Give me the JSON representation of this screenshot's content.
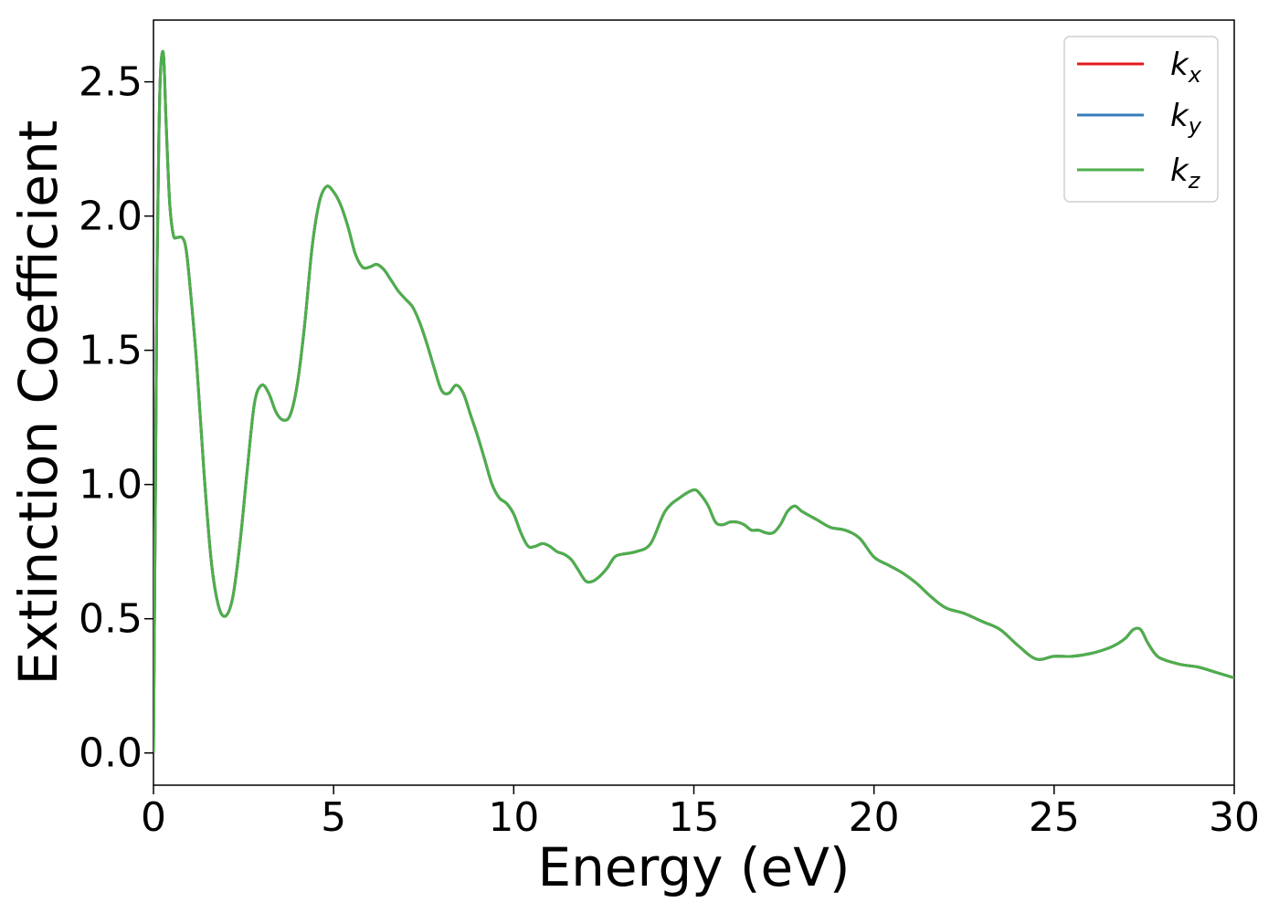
{
  "chart_data": {
    "type": "line",
    "title": "",
    "xlabel": "Energy (eV)",
    "ylabel": "Extinction Coefficient",
    "xlim": [
      0,
      30
    ],
    "ylim": [
      -0.12,
      2.73
    ],
    "xticks": [
      0,
      5,
      10,
      15,
      20,
      25,
      30
    ],
    "yticks": [
      0.0,
      0.5,
      1.0,
      1.5,
      2.0,
      2.5
    ],
    "xtick_labels": [
      "0",
      "5",
      "10",
      "15",
      "20",
      "25",
      "30"
    ],
    "ytick_labels": [
      "0.0",
      "0.5",
      "1.0",
      "1.5",
      "2.0",
      "2.5"
    ],
    "grid": false,
    "legend_position": "top-right",
    "x": [
      0,
      0.05,
      0.1,
      0.15,
      0.2,
      0.28,
      0.35,
      0.45,
      0.55,
      0.65,
      0.8,
      0.9,
      1.0,
      1.2,
      1.4,
      1.6,
      1.8,
      2.0,
      2.2,
      2.4,
      2.6,
      2.8,
      3.0,
      3.2,
      3.4,
      3.6,
      3.8,
      4.0,
      4.2,
      4.4,
      4.6,
      4.8,
      5.0,
      5.2,
      5.4,
      5.6,
      5.8,
      6.0,
      6.2,
      6.4,
      6.6,
      6.8,
      7.0,
      7.2,
      7.4,
      7.6,
      7.8,
      8.0,
      8.2,
      8.4,
      8.6,
      8.8,
      9.0,
      9.2,
      9.4,
      9.6,
      9.8,
      10.0,
      10.2,
      10.4,
      10.6,
      10.8,
      11.0,
      11.2,
      11.4,
      11.6,
      11.8,
      12.0,
      12.2,
      12.4,
      12.6,
      12.8,
      13.0,
      13.4,
      13.8,
      14.2,
      14.6,
      15.0,
      15.2,
      15.4,
      15.6,
      15.8,
      16.0,
      16.2,
      16.4,
      16.6,
      16.8,
      17.0,
      17.2,
      17.4,
      17.6,
      17.8,
      18.0,
      18.4,
      18.8,
      19.2,
      19.6,
      20.0,
      20.4,
      20.8,
      21.2,
      21.6,
      22.0,
      22.5,
      23.0,
      23.5,
      24.0,
      24.5,
      25.0,
      25.5,
      26.0,
      26.5,
      26.8,
      27.0,
      27.2,
      27.4,
      27.6,
      27.8,
      28.0,
      28.5,
      29.0,
      29.5,
      30.0
    ],
    "series": [
      {
        "name": "k_x",
        "color": "#e41a1c"
      },
      {
        "name": "k_y",
        "color": "#377eb8"
      },
      {
        "name": "k_z",
        "color": "#4daf4a"
      }
    ],
    "values": [
      0.0,
      0.9,
      1.8,
      2.3,
      2.55,
      2.6,
      2.35,
      2.05,
      1.93,
      1.92,
      1.92,
      1.88,
      1.76,
      1.45,
      1.05,
      0.72,
      0.55,
      0.51,
      0.58,
      0.78,
      1.05,
      1.3,
      1.37,
      1.34,
      1.27,
      1.24,
      1.26,
      1.38,
      1.6,
      1.88,
      2.05,
      2.11,
      2.09,
      2.04,
      1.96,
      1.86,
      1.81,
      1.81,
      1.82,
      1.8,
      1.76,
      1.72,
      1.69,
      1.66,
      1.6,
      1.52,
      1.43,
      1.35,
      1.34,
      1.37,
      1.34,
      1.26,
      1.18,
      1.09,
      1.0,
      0.95,
      0.93,
      0.89,
      0.82,
      0.77,
      0.77,
      0.78,
      0.77,
      0.75,
      0.74,
      0.72,
      0.68,
      0.64,
      0.64,
      0.66,
      0.69,
      0.73,
      0.74,
      0.75,
      0.78,
      0.9,
      0.95,
      0.98,
      0.96,
      0.92,
      0.86,
      0.85,
      0.86,
      0.86,
      0.85,
      0.83,
      0.83,
      0.82,
      0.82,
      0.85,
      0.9,
      0.92,
      0.9,
      0.87,
      0.84,
      0.83,
      0.8,
      0.73,
      0.7,
      0.67,
      0.63,
      0.58,
      0.54,
      0.52,
      0.49,
      0.46,
      0.4,
      0.35,
      0.36,
      0.36,
      0.37,
      0.39,
      0.41,
      0.43,
      0.46,
      0.46,
      0.41,
      0.37,
      0.35,
      0.33,
      0.32,
      0.3,
      0.28
    ]
  }
}
